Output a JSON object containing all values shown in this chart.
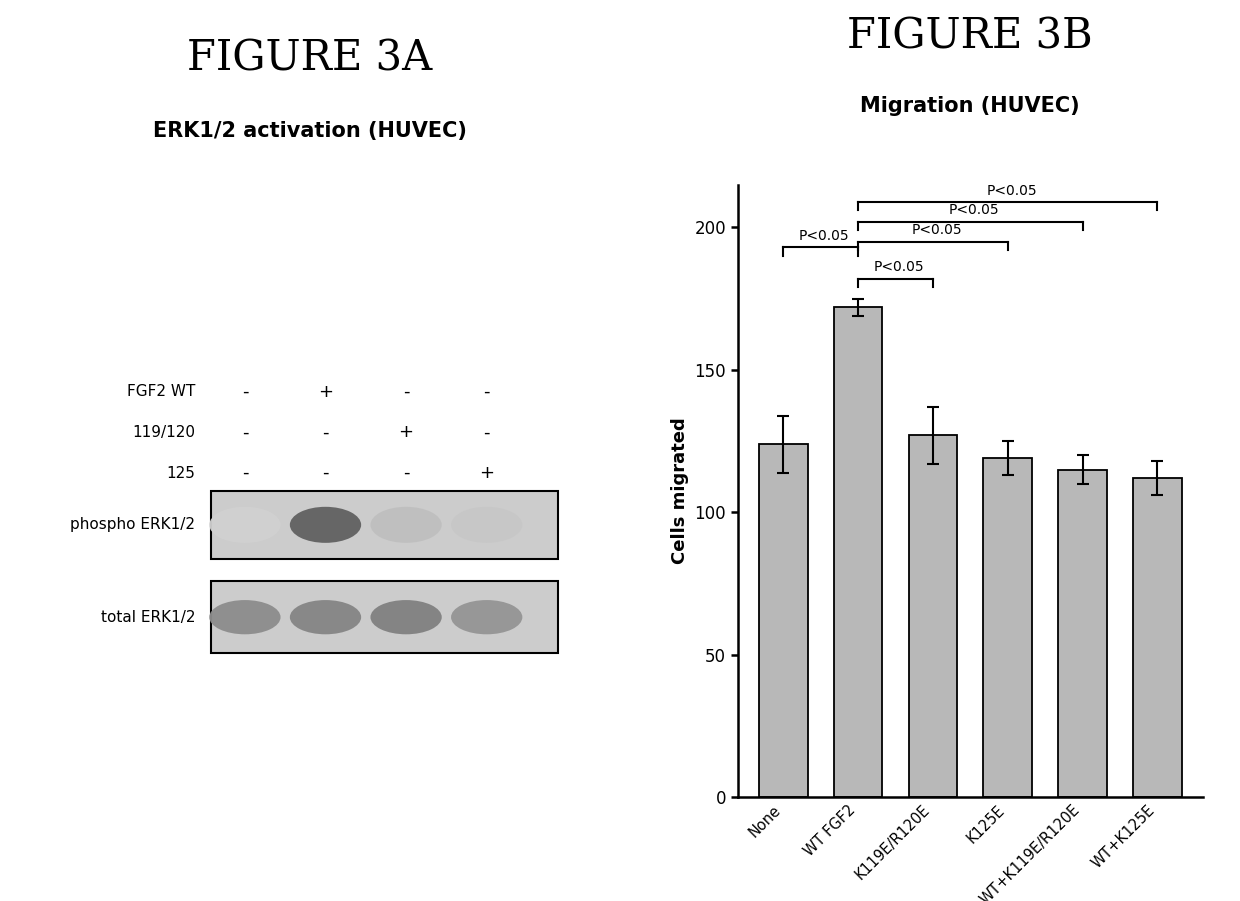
{
  "fig3a_title": "FIGURE 3A",
  "fig3a_subtitle": "ERK1/2 activation (HUVEC)",
  "fig3b_title": "FIGURE 3B",
  "fig3b_subtitle": "Migration (HUVEC)",
  "bar_categories": [
    "None",
    "WT FGF2",
    "K119E/R120E",
    "K125E",
    "WT+K119E/R120E",
    "WT+K125E"
  ],
  "bar_values": [
    124,
    172,
    127,
    119,
    115,
    112
  ],
  "bar_errors": [
    10,
    3,
    10,
    6,
    5,
    6
  ],
  "bar_color": "#b8b8b8",
  "bar_edgecolor": "#000000",
  "ylabel": "Cells migrated",
  "ylim": [
    0,
    215
  ],
  "yticks": [
    0,
    50,
    100,
    150,
    200
  ],
  "background_color": "#ffffff",
  "bracket_defs": [
    [
      0,
      1,
      193,
      "P<0.05"
    ],
    [
      1,
      2,
      182,
      "P<0.05"
    ],
    [
      1,
      3,
      195,
      "P<0.05"
    ],
    [
      1,
      4,
      202,
      "P<0.05"
    ],
    [
      1,
      5,
      209,
      "P<0.05"
    ]
  ],
  "wb_fgf2wt": [
    "-",
    "+",
    "-",
    "-"
  ],
  "wb_119120": [
    "-",
    "-",
    "+",
    "-"
  ],
  "wb_125": [
    "-",
    "-",
    "-",
    "+"
  ],
  "phospho_intensities": [
    0.82,
    0.38,
    0.75,
    0.78
  ],
  "total_intensities": [
    0.55,
    0.52,
    0.5,
    0.58
  ],
  "blot_bg": "#d0d0d0"
}
